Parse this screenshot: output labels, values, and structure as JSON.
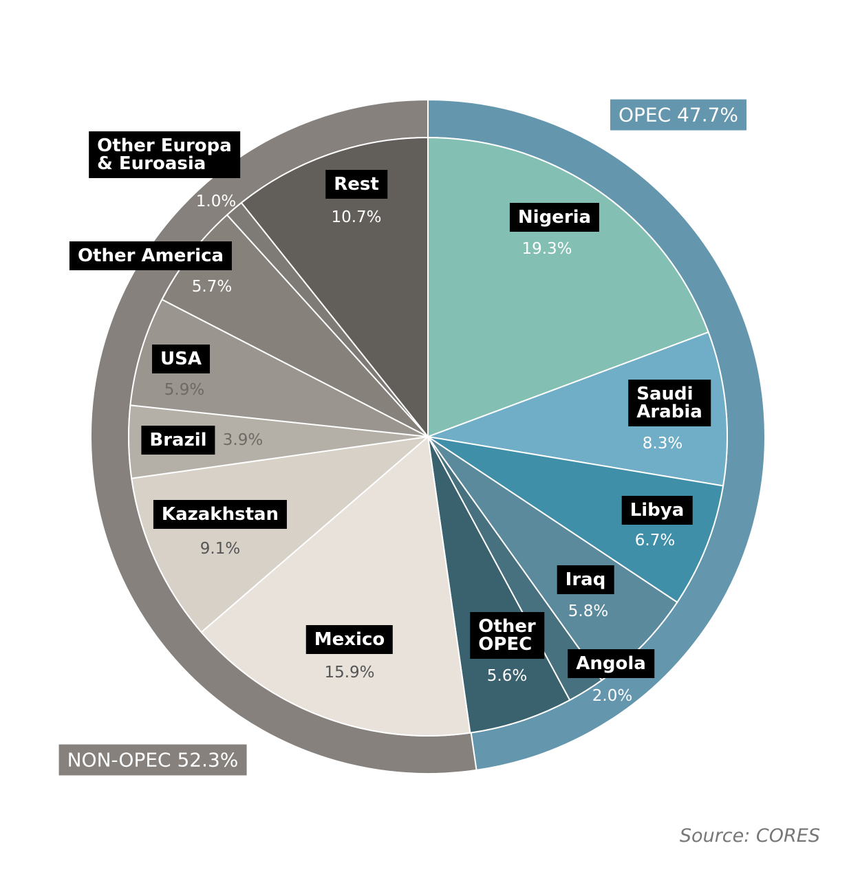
{
  "chart_data": {
    "type": "pie",
    "categories": [
      "Nigeria",
      "Saudi\nArabia",
      "Libya",
      "Iraq",
      "Angola",
      "Other\nOPEC",
      "Mexico",
      "Kazakhstan",
      "Brazil",
      "USA",
      "Other America",
      "Other Europa\n& Euroasia",
      "Rest"
    ],
    "values": [
      19.3,
      8.3,
      6.7,
      5.8,
      2.0,
      5.6,
      15.9,
      9.1,
      3.9,
      5.9,
      5.7,
      1.0,
      10.7
    ],
    "value_labels": [
      "19.3%",
      "8.3%",
      "6.7%",
      "5.8%",
      "2.0%",
      "5.6%",
      "15.9%",
      "9.1%",
      "3.9%",
      "5.9%",
      "5.7%",
      "1.0%",
      "10.7%"
    ],
    "colors": [
      "#84bfb4",
      "#70adc7",
      "#3f8fa8",
      "#5b8a9c",
      "#47717f",
      "#3a616e",
      "#e8e2da",
      "#d7d1c8",
      "#b5b0a7",
      "#9a958e",
      "#86817b",
      "#7e7a75",
      "#625f5a"
    ],
    "groups": {
      "labels": [
        "OPEC 47.7%",
        "NON-OPEC 52.3%"
      ],
      "values": [
        47.7,
        52.3
      ],
      "colors": [
        "#6497ae",
        "#86817c"
      ]
    },
    "source": "Source: CORES"
  }
}
